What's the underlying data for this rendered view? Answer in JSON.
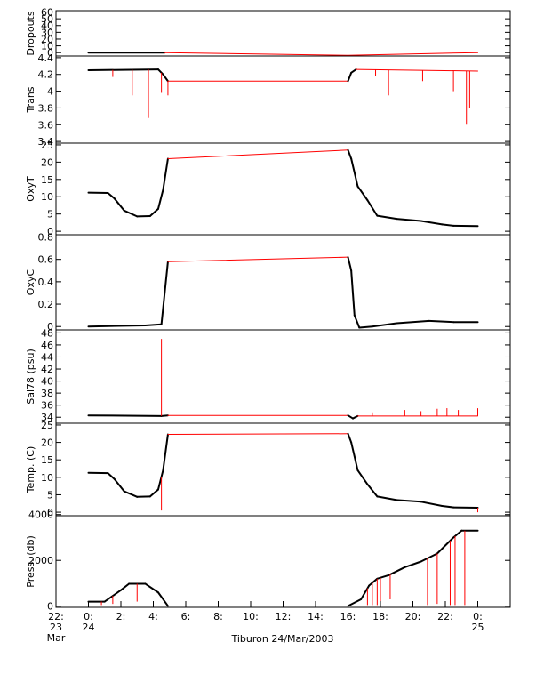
{
  "figure": {
    "caption": "Tiburon 24/Mar/2003"
  },
  "colors": {
    "data_line": "#000000",
    "raw_line": "#ff0000",
    "axis": "#000000",
    "background": "#ffffff"
  },
  "chart_data": [
    {
      "type": "line",
      "ylabel": "Dropouts",
      "ylim": [
        -5,
        62
      ],
      "yticks": [
        0,
        10,
        20,
        30,
        40,
        50,
        60
      ],
      "series": [
        {
          "values": [
            [
              0,
              0
            ],
            [
              4.7,
              0
            ],
            [
              16,
              -4
            ],
            [
              24,
              0
            ]
          ]
        }
      ]
    },
    {
      "type": "line",
      "ylabel": "Trans",
      "ylim": [
        3.38,
        4.42
      ],
      "yticks": [
        3.4,
        3.6,
        3.8,
        4.0,
        4.2,
        4.4
      ],
      "series": [
        {
          "values": [
            [
              0,
              4.25
            ],
            [
              4.3,
              4.26
            ],
            [
              4.6,
              4.2
            ],
            [
              4.9,
              4.12
            ],
            [
              16,
              4.12
            ],
            [
              16.2,
              4.22
            ],
            [
              16.5,
              4.26
            ],
            [
              24,
              4.24
            ]
          ]
        },
        {
          "spikes": [
            [
              1.5,
              4.17
            ],
            [
              2.7,
              3.95
            ],
            [
              3.7,
              3.68
            ],
            [
              4.5,
              3.98
            ],
            [
              4.9,
              3.95
            ],
            [
              16.0,
              4.05
            ],
            [
              17.7,
              4.18
            ],
            [
              18.5,
              3.95
            ],
            [
              20.6,
              4.12
            ],
            [
              22.5,
              4.0
            ],
            [
              23.3,
              3.6
            ],
            [
              23.5,
              3.8
            ]
          ]
        }
      ]
    },
    {
      "type": "line",
      "ylabel": "OxyT",
      "ylim": [
        -1,
        25.5
      ],
      "yticks": [
        0,
        5,
        10,
        15,
        20,
        25
      ],
      "series": [
        {
          "values": [
            [
              0,
              11.2
            ],
            [
              1.2,
              11.1
            ],
            [
              1.6,
              9.5
            ],
            [
              2.2,
              6
            ],
            [
              3.0,
              4.3
            ],
            [
              3.8,
              4.4
            ],
            [
              4.3,
              6.5
            ],
            [
              4.6,
              12
            ],
            [
              4.9,
              21
            ],
            [
              16,
              23.5
            ],
            [
              16.2,
              21
            ],
            [
              16.6,
              13
            ],
            [
              17.2,
              9
            ],
            [
              17.8,
              4.5
            ],
            [
              19.0,
              3.6
            ],
            [
              20.5,
              3.0
            ],
            [
              21.8,
              2.0
            ],
            [
              22.5,
              1.6
            ],
            [
              24,
              1.5
            ]
          ]
        }
      ]
    },
    {
      "type": "line",
      "ylabel": "OxyC",
      "ylim": [
        -0.03,
        0.82
      ],
      "yticks": [
        0.0,
        0.2,
        0.4,
        0.6,
        0.8
      ],
      "series": [
        {
          "values": [
            [
              0,
              0.0
            ],
            [
              3.5,
              0.01
            ],
            [
              4.5,
              0.02
            ],
            [
              4.7,
              0.3
            ],
            [
              4.9,
              0.58
            ],
            [
              16,
              0.62
            ],
            [
              16.2,
              0.5
            ],
            [
              16.4,
              0.1
            ],
            [
              16.7,
              -0.01
            ],
            [
              17.5,
              0.0
            ],
            [
              19.0,
              0.03
            ],
            [
              21.0,
              0.05
            ],
            [
              22.5,
              0.04
            ],
            [
              24,
              0.04
            ]
          ]
        }
      ]
    },
    {
      "type": "line",
      "ylabel": "Sal78 (psu)",
      "ylim": [
        33,
        48.5
      ],
      "yticks": [
        34,
        36,
        38,
        40,
        42,
        44,
        46,
        48
      ],
      "series": [
        {
          "values": [
            [
              0,
              34.3
            ],
            [
              4.5,
              34.2
            ],
            [
              4.9,
              34.3
            ],
            [
              16,
              34.3
            ],
            [
              16.3,
              33.8
            ],
            [
              16.6,
              34.2
            ],
            [
              24,
              34.2
            ]
          ]
        },
        {
          "spikes": [
            [
              4.5,
              47.0
            ],
            [
              17.5,
              34.8
            ],
            [
              19.5,
              35.2
            ],
            [
              20.5,
              35.0
            ],
            [
              21.5,
              35.4
            ],
            [
              22.1,
              35.5
            ],
            [
              22.8,
              35.2
            ],
            [
              24,
              35.5
            ]
          ]
        }
      ]
    },
    {
      "type": "line",
      "ylabel": "Temp. (C)",
      "ylim": [
        -1,
        25.5
      ],
      "yticks": [
        0,
        5,
        10,
        15,
        20,
        25
      ],
      "series": [
        {
          "values": [
            [
              0,
              11.3
            ],
            [
              1.2,
              11.2
            ],
            [
              1.6,
              9.5
            ],
            [
              2.2,
              6
            ],
            [
              3.0,
              4.4
            ],
            [
              3.8,
              4.5
            ],
            [
              4.3,
              6.5
            ],
            [
              4.6,
              12
            ],
            [
              4.9,
              22.3
            ],
            [
              16,
              22.5
            ],
            [
              16.2,
              20
            ],
            [
              16.6,
              12
            ],
            [
              17.2,
              8
            ],
            [
              17.8,
              4.5
            ],
            [
              19.0,
              3.5
            ],
            [
              20.5,
              3.0
            ],
            [
              21.8,
              1.8
            ],
            [
              22.5,
              1.4
            ],
            [
              24,
              1.3
            ]
          ]
        },
        {
          "spikes": [
            [
              4.5,
              0.5
            ],
            [
              24,
              0.0
            ]
          ]
        }
      ]
    },
    {
      "type": "line",
      "ylabel": "Press. (db)",
      "ylim": [
        -50,
        3950
      ],
      "yticks": [
        0,
        2000,
        4000
      ],
      "series": [
        {
          "values": [
            [
              0,
              200
            ],
            [
              1.0,
              200
            ],
            [
              2.0,
              700
            ],
            [
              2.5,
              980
            ],
            [
              3.5,
              980
            ],
            [
              4.3,
              600
            ],
            [
              4.9,
              10
            ],
            [
              16,
              10
            ],
            [
              16.8,
              300
            ],
            [
              17.3,
              900
            ],
            [
              17.8,
              1200
            ],
            [
              18.5,
              1350
            ],
            [
              19.5,
              1700
            ],
            [
              20.5,
              1950
            ],
            [
              21.5,
              2300
            ],
            [
              22.5,
              3000
            ],
            [
              23.0,
              3300
            ],
            [
              24,
              3300
            ]
          ]
        },
        {
          "spikes": [
            [
              0.8,
              50
            ],
            [
              1.5,
              100
            ],
            [
              3.0,
              200
            ],
            [
              17.2,
              50
            ],
            [
              17.5,
              50
            ],
            [
              17.8,
              50
            ],
            [
              18.0,
              50
            ],
            [
              18.6,
              300
            ],
            [
              20.9,
              50
            ],
            [
              21.5,
              100
            ],
            [
              22.3,
              50
            ],
            [
              22.6,
              50
            ],
            [
              23.2,
              50
            ]
          ]
        }
      ]
    }
  ],
  "x_axis": {
    "xlim": [
      -2,
      26
    ],
    "ticks": [
      {
        "x": -2,
        "lines": [
          "22:",
          "23",
          "Mar"
        ]
      },
      {
        "x": 0,
        "lines": [
          "0:",
          "24",
          ""
        ]
      },
      {
        "x": 2,
        "lines": [
          "2:",
          "",
          ""
        ]
      },
      {
        "x": 4,
        "lines": [
          "4:",
          "",
          ""
        ]
      },
      {
        "x": 6,
        "lines": [
          "6:",
          "",
          ""
        ]
      },
      {
        "x": 8,
        "lines": [
          "8:",
          "",
          ""
        ]
      },
      {
        "x": 10,
        "lines": [
          "10:",
          "",
          ""
        ]
      },
      {
        "x": 12,
        "lines": [
          "12:",
          "",
          ""
        ]
      },
      {
        "x": 14,
        "lines": [
          "14:",
          "",
          ""
        ]
      },
      {
        "x": 16,
        "lines": [
          "16:",
          "",
          ""
        ]
      },
      {
        "x": 18,
        "lines": [
          "18:",
          "",
          ""
        ]
      },
      {
        "x": 20,
        "lines": [
          "20:",
          "",
          ""
        ]
      },
      {
        "x": 22,
        "lines": [
          "22:",
          "",
          ""
        ]
      },
      {
        "x": 24,
        "lines": [
          "0:",
          "25",
          ""
        ]
      }
    ]
  }
}
